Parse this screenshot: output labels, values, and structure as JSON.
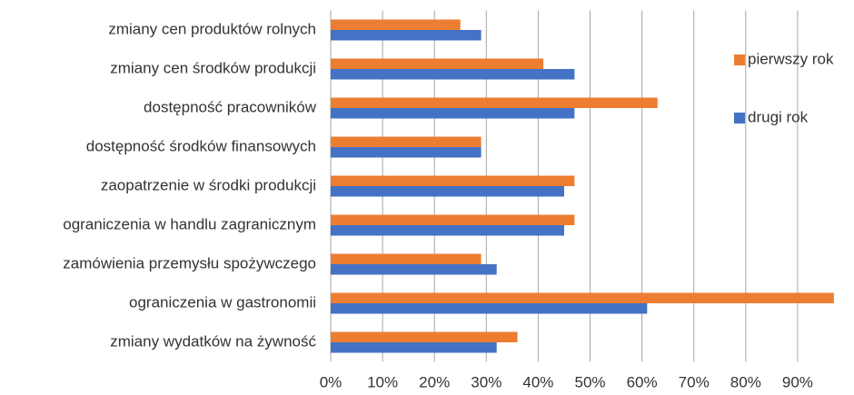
{
  "chart_data": {
    "type": "barh",
    "categories": [
      "zmiany cen produktów rolnych",
      "zmiany cen środków produkcji",
      "dostępność  pracowników",
      "dostępność  środków finansowych",
      "zaopatrzenie w środki produkcji",
      "ograniczenia w handlu zagranicznym",
      "zamówienia przemysłu spożywczego",
      "ograniczenia w gastronomii",
      "zmiany wydatków na żywność"
    ],
    "series": [
      {
        "name": "pierwszy rok",
        "color": "#ed7d31",
        "values": [
          25,
          41,
          63,
          29,
          47,
          47,
          29,
          97,
          36
        ]
      },
      {
        "name": "drugi rok",
        "color": "#4472c4",
        "values": [
          29,
          47,
          47,
          29,
          45,
          45,
          32,
          61,
          32
        ]
      }
    ],
    "xlim": [
      0,
      100
    ],
    "xticks": [
      {
        "value": 0,
        "label": "0%"
      },
      {
        "value": 10,
        "label": "10%"
      },
      {
        "value": 20,
        "label": "20%"
      },
      {
        "value": 30,
        "label": "30%"
      },
      {
        "value": 40,
        "label": "40%"
      },
      {
        "value": 50,
        "label": "50%"
      },
      {
        "value": 60,
        "label": "60%"
      },
      {
        "value": 70,
        "label": "70%"
      },
      {
        "value": 80,
        "label": "80%"
      },
      {
        "value": 90,
        "label": "90%"
      }
    ],
    "grid": true,
    "legend": "right"
  }
}
